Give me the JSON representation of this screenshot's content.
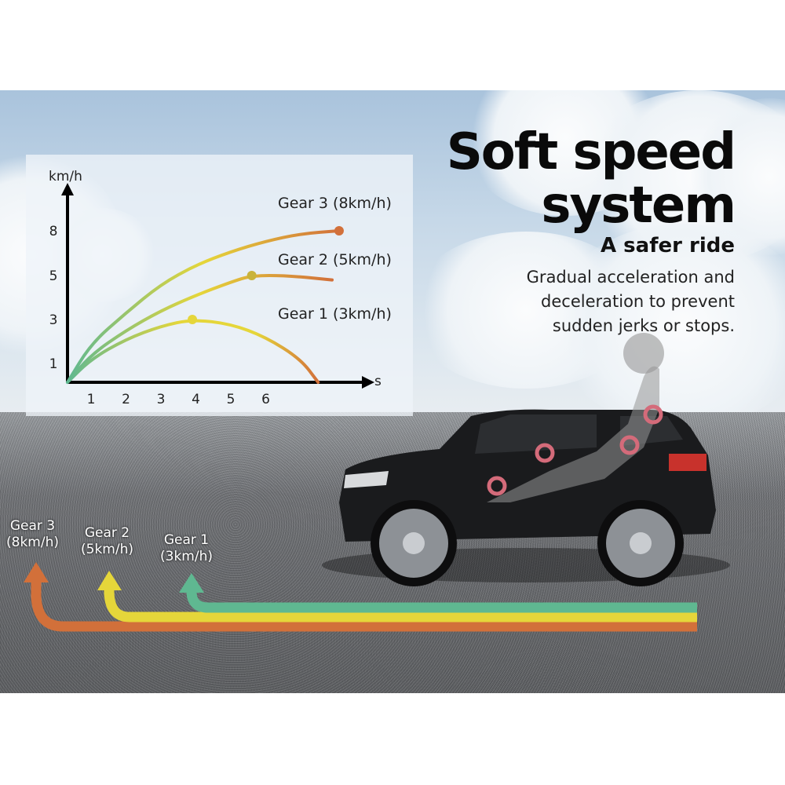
{
  "headline": {
    "line1": "Soft speed",
    "line2": "system"
  },
  "subtitle": "A safer ride",
  "description": [
    "Gradual acceleration and",
    "deceleration to prevent",
    "sudden jerks or stops."
  ],
  "ground_labels": [
    {
      "gear": "Gear 3",
      "speed": "(8km/h)",
      "color": "#d2703a"
    },
    {
      "gear": "Gear 2",
      "speed": "(5km/h)",
      "color": "#e5d63a"
    },
    {
      "gear": "Gear 1",
      "speed": "(3km/h)",
      "color": "#5fb891"
    }
  ],
  "chart_data": {
    "type": "line",
    "xlabel": "s",
    "ylabel": "km/h",
    "x_ticks": [
      "1",
      "2",
      "3",
      "4",
      "5",
      "6"
    ],
    "y_ticks": [
      "1",
      "3",
      "5",
      "8"
    ],
    "grid": false,
    "legend": "right, labels beside curves",
    "gradient_colors": [
      "#5fb891",
      "#e5d63a",
      "#d2703a"
    ],
    "series": [
      {
        "name": "Gear 3 (8km/h)",
        "points": [
          [
            0,
            0
          ],
          [
            1,
            1.9
          ],
          [
            2,
            3.3
          ],
          [
            3,
            4.6
          ],
          [
            4,
            5.7
          ],
          [
            5,
            6.6
          ],
          [
            6,
            7.3
          ],
          [
            7,
            7.8
          ],
          [
            8.1,
            8
          ]
        ],
        "marker": [
          8.1,
          8
        ]
      },
      {
        "name": "Gear 2 (5km/h)",
        "points": [
          [
            0,
            0
          ],
          [
            1,
            1.4
          ],
          [
            2,
            2.5
          ],
          [
            3,
            3.4
          ],
          [
            4,
            4.1
          ],
          [
            5,
            4.7
          ],
          [
            5.6,
            5
          ],
          [
            6.6,
            5
          ],
          [
            7.9,
            4.8
          ]
        ],
        "marker": [
          5.6,
          5
        ]
      },
      {
        "name": "Gear 1  (3km/h)",
        "points": [
          [
            0,
            0
          ],
          [
            1,
            1.2
          ],
          [
            2,
            2.1
          ],
          [
            3,
            2.7
          ],
          [
            3.9,
            3
          ],
          [
            5,
            2.8
          ],
          [
            6,
            2.2
          ],
          [
            7,
            1.2
          ],
          [
            7.5,
            0
          ]
        ],
        "marker": [
          3.9,
          3
        ]
      }
    ]
  }
}
